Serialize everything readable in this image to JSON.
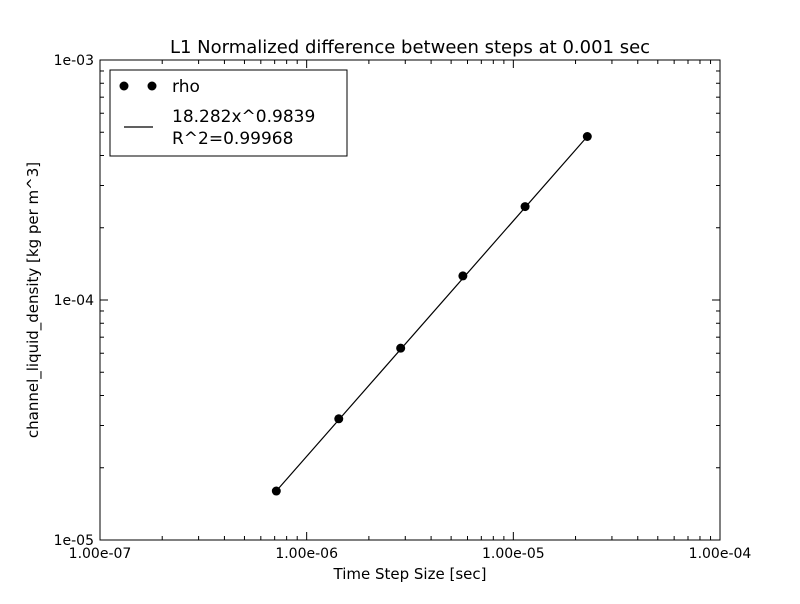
{
  "chart_data": {
    "type": "scatter",
    "title": "L1 Normalized difference between steps at 0.001 sec",
    "xlabel": "Time Step Size [sec]",
    "ylabel": "channel_liquid_density [kg per m^3]",
    "xscale": "log",
    "yscale": "log",
    "xlim": [
      1e-07,
      0.0001
    ],
    "ylim": [
      1e-05,
      0.001
    ],
    "xticks": [
      {
        "value": 1e-07,
        "label": "1.00e-07"
      },
      {
        "value": 1e-06,
        "label": "1.00e-06"
      },
      {
        "value": 1e-05,
        "label": "1.00e-05"
      },
      {
        "value": 0.0001,
        "label": "1.00e-04"
      }
    ],
    "yticks": [
      {
        "value": 1e-05,
        "label": "1e-05"
      },
      {
        "value": 0.0001,
        "label": "1e-04"
      },
      {
        "value": 0.001,
        "label": "1e-03"
      }
    ],
    "grid": false,
    "legend_position": "top-left",
    "series": [
      {
        "name": "rho",
        "kind": "points",
        "color": "#000000",
        "x": [
          7.13e-07,
          1.43e-06,
          2.85e-06,
          5.7e-06,
          1.14e-05,
          2.28e-05
        ],
        "y": [
          1.6e-05,
          3.2e-05,
          6.3e-05,
          0.000126,
          0.000245,
          0.00048
        ]
      },
      {
        "name": "18.282x^0.9839",
        "name_line2": "R^2=0.99968",
        "kind": "fit-line",
        "color": "#000000",
        "coefficient": 18.282,
        "exponent": 0.9839,
        "x": [
          7.13e-07,
          2.28e-05
        ],
        "y": [
          1.6e-05,
          0.00048
        ]
      }
    ]
  }
}
